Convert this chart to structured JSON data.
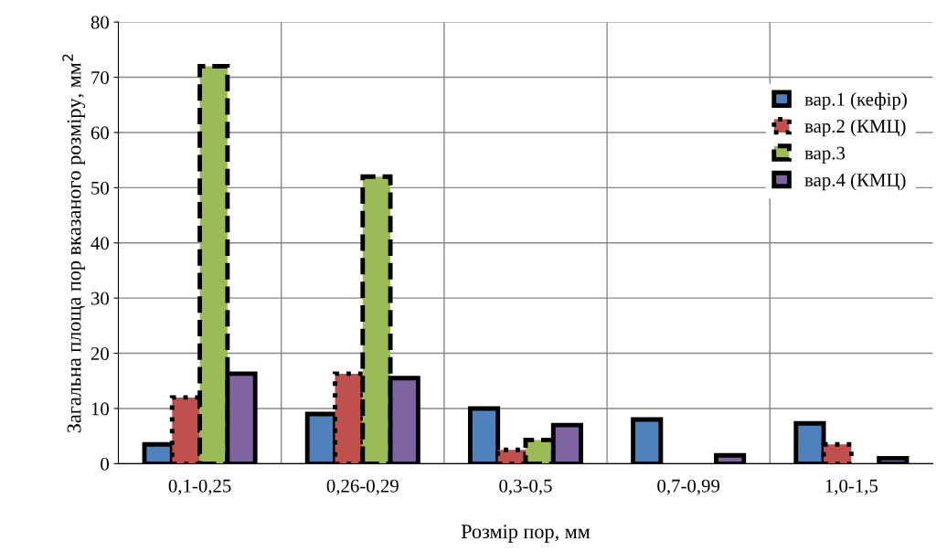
{
  "chart_data": {
    "type": "bar",
    "xlabel": "Розмір пор, мм",
    "ylabel": "Загальна площа пор вказаного розміру, мм$^{2}$",
    "categories": [
      "0,1-0,25",
      "0,26-0,29",
      "0,3-0,5",
      "0,7-0,99",
      "1,0-1,5"
    ],
    "series": [
      {
        "name": "вар.1 (кефір)",
        "color": "#4f81bd",
        "line_style": "solid",
        "values": [
          3.5,
          9,
          10,
          8,
          7.3
        ]
      },
      {
        "name": "вар.2 (КМЦ)",
        "color": "#c0504d",
        "line_style": "dotted",
        "values": [
          12,
          16.3,
          2.5,
          0,
          3.5
        ]
      },
      {
        "name": "вар.3",
        "color": "#9bbb59",
        "line_style": "dashed",
        "values": [
          72,
          52,
          4.3,
          0,
          0
        ]
      },
      {
        "name": "вар.4 (КМЦ)",
        "color": "#8064a2",
        "line_style": "solid",
        "values": [
          16.3,
          15.5,
          7,
          1.5,
          1
        ]
      }
    ],
    "ylim": [
      0,
      80
    ],
    "yticks": [
      0,
      10,
      20,
      30,
      40,
      50,
      60,
      70,
      80
    ],
    "grid": true,
    "legend": "top right"
  }
}
